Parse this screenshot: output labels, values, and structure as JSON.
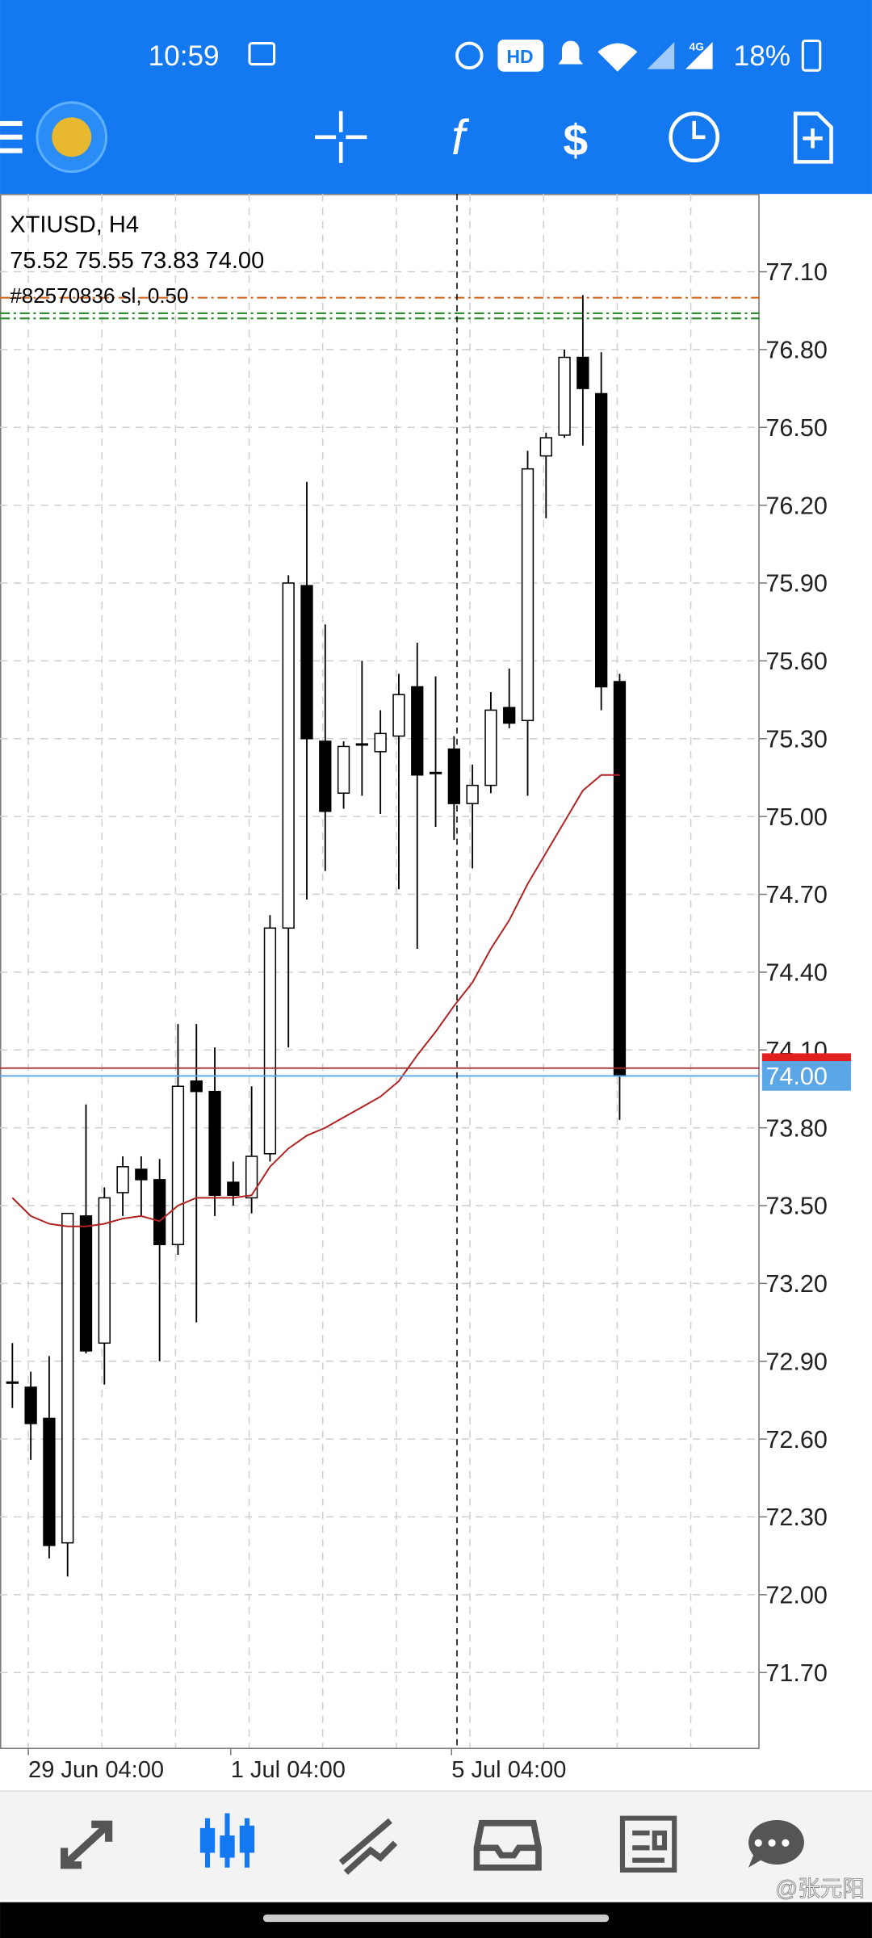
{
  "status_bar": {
    "time": "10:59",
    "network": "4G",
    "battery": "18%"
  },
  "chart_data": {
    "type": "candlestick",
    "title": "XTIUSD, H4",
    "subtitle": "75.52 75.55 73.83 74.00",
    "order_label": "#82570836 sl, 0.50",
    "categories": [
      null,
      "29 Jun 04:00",
      null,
      null,
      null,
      null,
      null,
      null,
      null,
      null,
      null,
      null,
      "1 Jul 04:00",
      null,
      null,
      null,
      null,
      null,
      null,
      null,
      null,
      null,
      null,
      null,
      "5 Jul 04:00",
      null,
      null,
      null,
      null,
      null,
      null,
      null,
      null,
      null
    ],
    "open": [
      72.82,
      72.8,
      72.68,
      72.2,
      73.46,
      72.97,
      73.55,
      73.64,
      73.6,
      73.35,
      73.98,
      73.94,
      73.59,
      73.53,
      73.7,
      74.57,
      75.89,
      75.29,
      75.09,
      75.28,
      75.25,
      75.31,
      75.5,
      75.17,
      75.26,
      75.05,
      75.12,
      75.42,
      75.37,
      76.39,
      76.47,
      76.77,
      76.63,
      75.52
    ],
    "high": [
      72.97,
      72.86,
      72.92,
      73.47,
      73.89,
      73.57,
      73.69,
      73.69,
      73.68,
      74.2,
      74.2,
      74.11,
      73.67,
      73.96,
      74.62,
      75.93,
      76.29,
      75.74,
      75.29,
      75.6,
      75.41,
      75.55,
      75.67,
      75.54,
      75.31,
      75.2,
      75.48,
      75.57,
      76.41,
      76.48,
      76.8,
      77.01,
      76.79,
      75.55
    ],
    "low": [
      72.72,
      72.52,
      72.14,
      72.07,
      72.93,
      72.81,
      73.46,
      73.46,
      72.9,
      73.31,
      73.05,
      73.46,
      73.5,
      73.47,
      73.67,
      74.11,
      74.68,
      74.79,
      75.03,
      75.08,
      75.01,
      74.72,
      74.49,
      74.96,
      74.91,
      74.8,
      75.09,
      75.34,
      75.08,
      76.15,
      76.46,
      76.43,
      75.41,
      73.83
    ],
    "close": [
      72.82,
      72.66,
      72.19,
      73.47,
      72.94,
      73.53,
      73.65,
      73.6,
      73.35,
      73.96,
      73.94,
      73.54,
      73.54,
      73.69,
      74.57,
      75.9,
      75.3,
      75.02,
      75.27,
      75.28,
      75.32,
      75.47,
      75.16,
      75.17,
      75.05,
      75.12,
      75.41,
      75.36,
      76.34,
      76.46,
      76.77,
      76.65,
      75.5,
      74.0
    ],
    "ma": {
      "color": "#b22222",
      "values": [
        73.53,
        73.46,
        73.43,
        73.42,
        73.42,
        73.43,
        73.45,
        73.46,
        73.44,
        73.5,
        73.53,
        73.53,
        73.53,
        73.54,
        73.65,
        73.72,
        73.77,
        73.8,
        73.84,
        73.88,
        73.92,
        73.98,
        74.08,
        74.17,
        74.27,
        74.36,
        74.49,
        74.6,
        74.74,
        74.86,
        74.98,
        75.1,
        75.16,
        75.16
      ]
    },
    "bid_line": {
      "value": 74,
      "label": "74.00",
      "color": "#5aa6e6"
    },
    "ask_line": {
      "value": 74.03,
      "color": "#a52a2a"
    },
    "order_lines": [
      {
        "value": 77.0,
        "color": "#d2691e"
      },
      {
        "value": 76.94,
        "color": "#2e8b2e"
      },
      {
        "value": 76.92,
        "color": "#2e8b2e"
      }
    ],
    "ylim": [
      71.41,
      77.4
    ],
    "yticks": [
      {
        "value": 77.1,
        "label": "77.10"
      },
      {
        "value": 76.8,
        "label": "76.80"
      },
      {
        "value": 76.5,
        "label": "76.50"
      },
      {
        "value": 76.2,
        "label": "76.20"
      },
      {
        "value": 75.9,
        "label": "75.90"
      },
      {
        "value": 75.6,
        "label": "75.60"
      },
      {
        "value": 75.3,
        "label": "75.30"
      },
      {
        "value": 75,
        "label": "75.00"
      },
      {
        "value": 74.7,
        "label": "74.70"
      },
      {
        "value": 74.4,
        "label": "74.40"
      },
      {
        "value": 74.1,
        "label": "74.10"
      },
      {
        "value": 73.8,
        "label": "73.80"
      },
      {
        "value": 73.5,
        "label": "73.50"
      },
      {
        "value": 73.2,
        "label": "73.20"
      },
      {
        "value": 72.9,
        "label": "72.90"
      },
      {
        "value": 72.6,
        "label": "72.60"
      },
      {
        "value": 72.3,
        "label": "72.30"
      },
      {
        "value": 72,
        "label": "72.00"
      },
      {
        "value": 71.7,
        "label": "71.70"
      }
    ],
    "grid": true
  },
  "watermark": "@张元阳"
}
